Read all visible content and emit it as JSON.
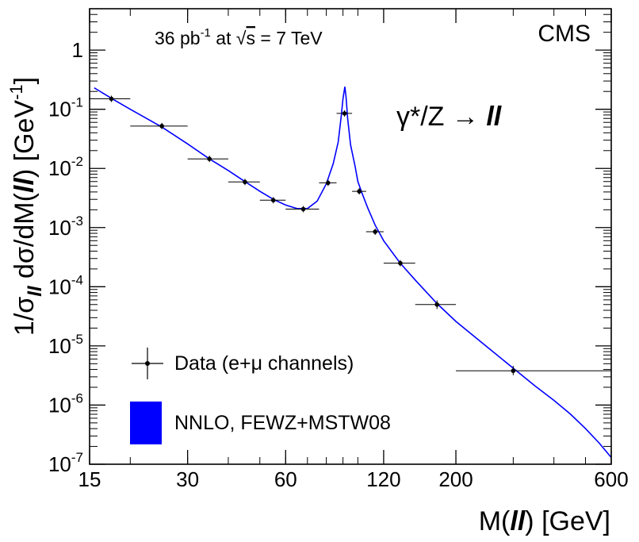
{
  "chart_data": {
    "type": "scatter",
    "xscale": "log",
    "yscale": "log",
    "xlim": [
      15,
      600
    ],
    "ylim": [
      1e-07,
      5
    ],
    "x_ticks": [
      15,
      30,
      60,
      120,
      200,
      600
    ],
    "x_tick_labels": [
      "15",
      "30",
      "60",
      "120",
      "200",
      "600"
    ],
    "y_ticks": [
      1e-07,
      1e-06,
      1e-05,
      0.0001,
      0.001,
      0.01,
      0.1,
      1
    ],
    "y_tick_labels": [
      {
        "base": "10",
        "exp": "-7"
      },
      {
        "base": "10",
        "exp": "-6"
      },
      {
        "base": "10",
        "exp": "-5"
      },
      {
        "base": "10",
        "exp": "-4"
      },
      {
        "base": "10",
        "exp": "-3"
      },
      {
        "base": "10",
        "exp": "-2"
      },
      {
        "base": "10",
        "exp": "-1"
      },
      {
        "base": "1",
        "exp": ""
      }
    ],
    "xlabel": {
      "pre": "M(",
      "ll": "ll",
      "post": ")  [GeV]"
    },
    "ylabel": {
      "pre": "1/σ",
      "sub": "ll",
      "mid": " dσ/dM(",
      "ll": "ll",
      "post": ")  [GeV",
      "exp": "-1",
      "end": "]"
    },
    "annotations": {
      "experiment": "CMS",
      "energy": {
        "a": "36 pb",
        "a_exp": "-1",
        "b": " at ",
        "sqrt": "√",
        "s": "s",
        "c": " = 7 TeV"
      },
      "process": {
        "a": "γ*/Z → ",
        "ll": "ll"
      }
    },
    "legend": {
      "position": "bottom-left",
      "entries": [
        {
          "label": "Data (e+μ channels)",
          "marker": "point-with-errorbars"
        },
        {
          "label": "NNLO, FEWZ+MSTW08",
          "marker": "filled-box"
        }
      ]
    },
    "series": [
      {
        "name": "Data (e+μ channels)",
        "color": "#000000",
        "points": [
          {
            "x": 17.5,
            "y": 0.15,
            "x_lo": 15,
            "x_hi": 20
          },
          {
            "x": 25,
            "y": 0.052,
            "x_lo": 20,
            "x_hi": 30
          },
          {
            "x": 35,
            "y": 0.0145,
            "x_lo": 30,
            "x_hi": 40
          },
          {
            "x": 45,
            "y": 0.0059,
            "x_lo": 40,
            "x_hi": 50
          },
          {
            "x": 55,
            "y": 0.0029,
            "x_lo": 50,
            "x_hi": 60
          },
          {
            "x": 68,
            "y": 0.00205,
            "x_lo": 60,
            "x_hi": 76
          },
          {
            "x": 81,
            "y": 0.0057,
            "x_lo": 76,
            "x_hi": 86
          },
          {
            "x": 91,
            "y": 0.085,
            "x_lo": 86,
            "x_hi": 96
          },
          {
            "x": 101,
            "y": 0.0041,
            "x_lo": 96,
            "x_hi": 106
          },
          {
            "x": 113,
            "y": 0.00085,
            "x_lo": 106,
            "x_hi": 120
          },
          {
            "x": 135,
            "y": 0.00025,
            "x_lo": 120,
            "x_hi": 150
          },
          {
            "x": 175,
            "y": 5e-05,
            "x_lo": 150,
            "x_hi": 200,
            "y_lo": 4.2e-05,
            "y_hi": 5.9e-05
          },
          {
            "x": 300,
            "y": 3.8e-06,
            "x_lo": 200,
            "x_hi": 600,
            "y_lo": 3.2e-06,
            "y_hi": 4.6e-06
          }
        ]
      },
      {
        "name": "NNLO, FEWZ+MSTW08",
        "type": "line",
        "color": "#0000ff",
        "points": [
          [
            15.5,
            0.23
          ],
          [
            18,
            0.14
          ],
          [
            20,
            0.1
          ],
          [
            25,
            0.05
          ],
          [
            30,
            0.026
          ],
          [
            35,
            0.0145
          ],
          [
            40,
            0.0092
          ],
          [
            45,
            0.006
          ],
          [
            50,
            0.0041
          ],
          [
            55,
            0.003
          ],
          [
            60,
            0.0024
          ],
          [
            65,
            0.0021
          ],
          [
            70,
            0.0021
          ],
          [
            75,
            0.0028
          ],
          [
            80,
            0.0055
          ],
          [
            84,
            0.012
          ],
          [
            87,
            0.028
          ],
          [
            89,
            0.08
          ],
          [
            90,
            0.15
          ],
          [
            91.2,
            0.24
          ],
          [
            92,
            0.16
          ],
          [
            93,
            0.07
          ],
          [
            95,
            0.025
          ],
          [
            98,
            0.011
          ],
          [
            100,
            0.006
          ],
          [
            103,
            0.0038
          ],
          [
            107,
            0.0022
          ],
          [
            113,
            0.0011
          ],
          [
            120,
            0.0006
          ],
          [
            135,
            0.00025
          ],
          [
            150,
            0.00013
          ],
          [
            175,
            5.2e-05
          ],
          [
            200,
            2.6e-05
          ],
          [
            250,
            9.5e-06
          ],
          [
            300,
            4.2e-06
          ],
          [
            350,
            2.1e-06
          ],
          [
            400,
            1.2e-06
          ],
          [
            450,
            7e-07
          ],
          [
            500,
            4e-07
          ],
          [
            550,
            2.3e-07
          ],
          [
            600,
            1.3e-07
          ]
        ]
      }
    ]
  }
}
